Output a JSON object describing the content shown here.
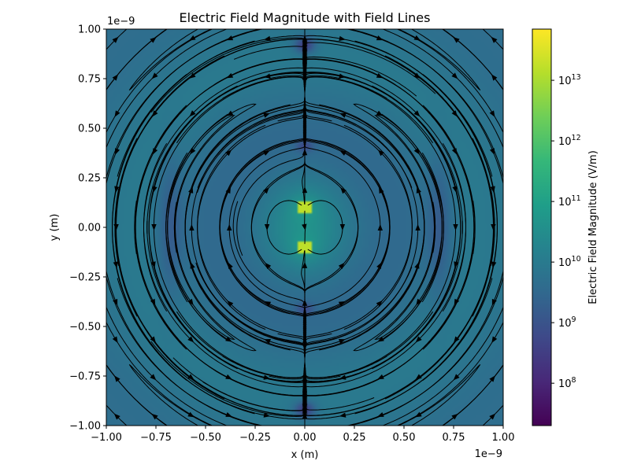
{
  "chart_data": {
    "type": "heatmap",
    "title": "Electric Field Magnitude with Field Lines",
    "xlabel": "x (m)",
    "ylabel": "y (m)",
    "x_multiplier": "1e−9",
    "y_multiplier": "1e−9",
    "xlim": [
      -1.0,
      1.0
    ],
    "ylim": [
      -1.0,
      1.0
    ],
    "x_ticks": [
      -1.0,
      -0.75,
      -0.5,
      -0.25,
      0.0,
      0.25,
      0.5,
      0.75,
      1.0
    ],
    "y_ticks": [
      -1.0,
      -0.75,
      -0.5,
      -0.25,
      0.0,
      0.25,
      0.5,
      0.75,
      1.0
    ],
    "x_tick_labels": [
      "−1.00",
      "−0.75",
      "−0.50",
      "−0.25",
      "0.00",
      "0.25",
      "0.50",
      "0.75",
      "1.00"
    ],
    "y_tick_labels": [
      "−1.00",
      "−0.75",
      "−0.50",
      "−0.25",
      "0.00",
      "0.25",
      "0.50",
      "0.75",
      "1.00"
    ],
    "colormap": "viridis",
    "colorbar": {
      "label": "Electric Field Magnitude (V/m)",
      "scale": "log",
      "range": [
        20000000,
        70000000000000
      ],
      "ticks": [
        {
          "value": 100000000,
          "base": "10",
          "exp": "8"
        },
        {
          "value": 1000000000,
          "base": "10",
          "exp": "9"
        },
        {
          "value": 10000000000,
          "base": "10",
          "exp": "10"
        },
        {
          "value": 100000000000,
          "base": "10",
          "exp": "11"
        },
        {
          "value": 1000000000000,
          "base": "10",
          "exp": "12"
        },
        {
          "value": 10000000000000,
          "base": "10",
          "exp": "13"
        }
      ]
    },
    "charges": [
      {
        "x": 0.0,
        "y": 0.1,
        "sign": "+"
      },
      {
        "x": 0.0,
        "y": -0.1,
        "sign": "-"
      }
    ],
    "overlay": "streamlines",
    "grid": false
  },
  "colors": {
    "viridis": [
      "#440154",
      "#482878",
      "#3e4989",
      "#31688e",
      "#26828e",
      "#1f9e89",
      "#35b779",
      "#6ece58",
      "#b5de2b",
      "#fde725"
    ],
    "streamline": "#000000",
    "background": "#ffffff"
  }
}
